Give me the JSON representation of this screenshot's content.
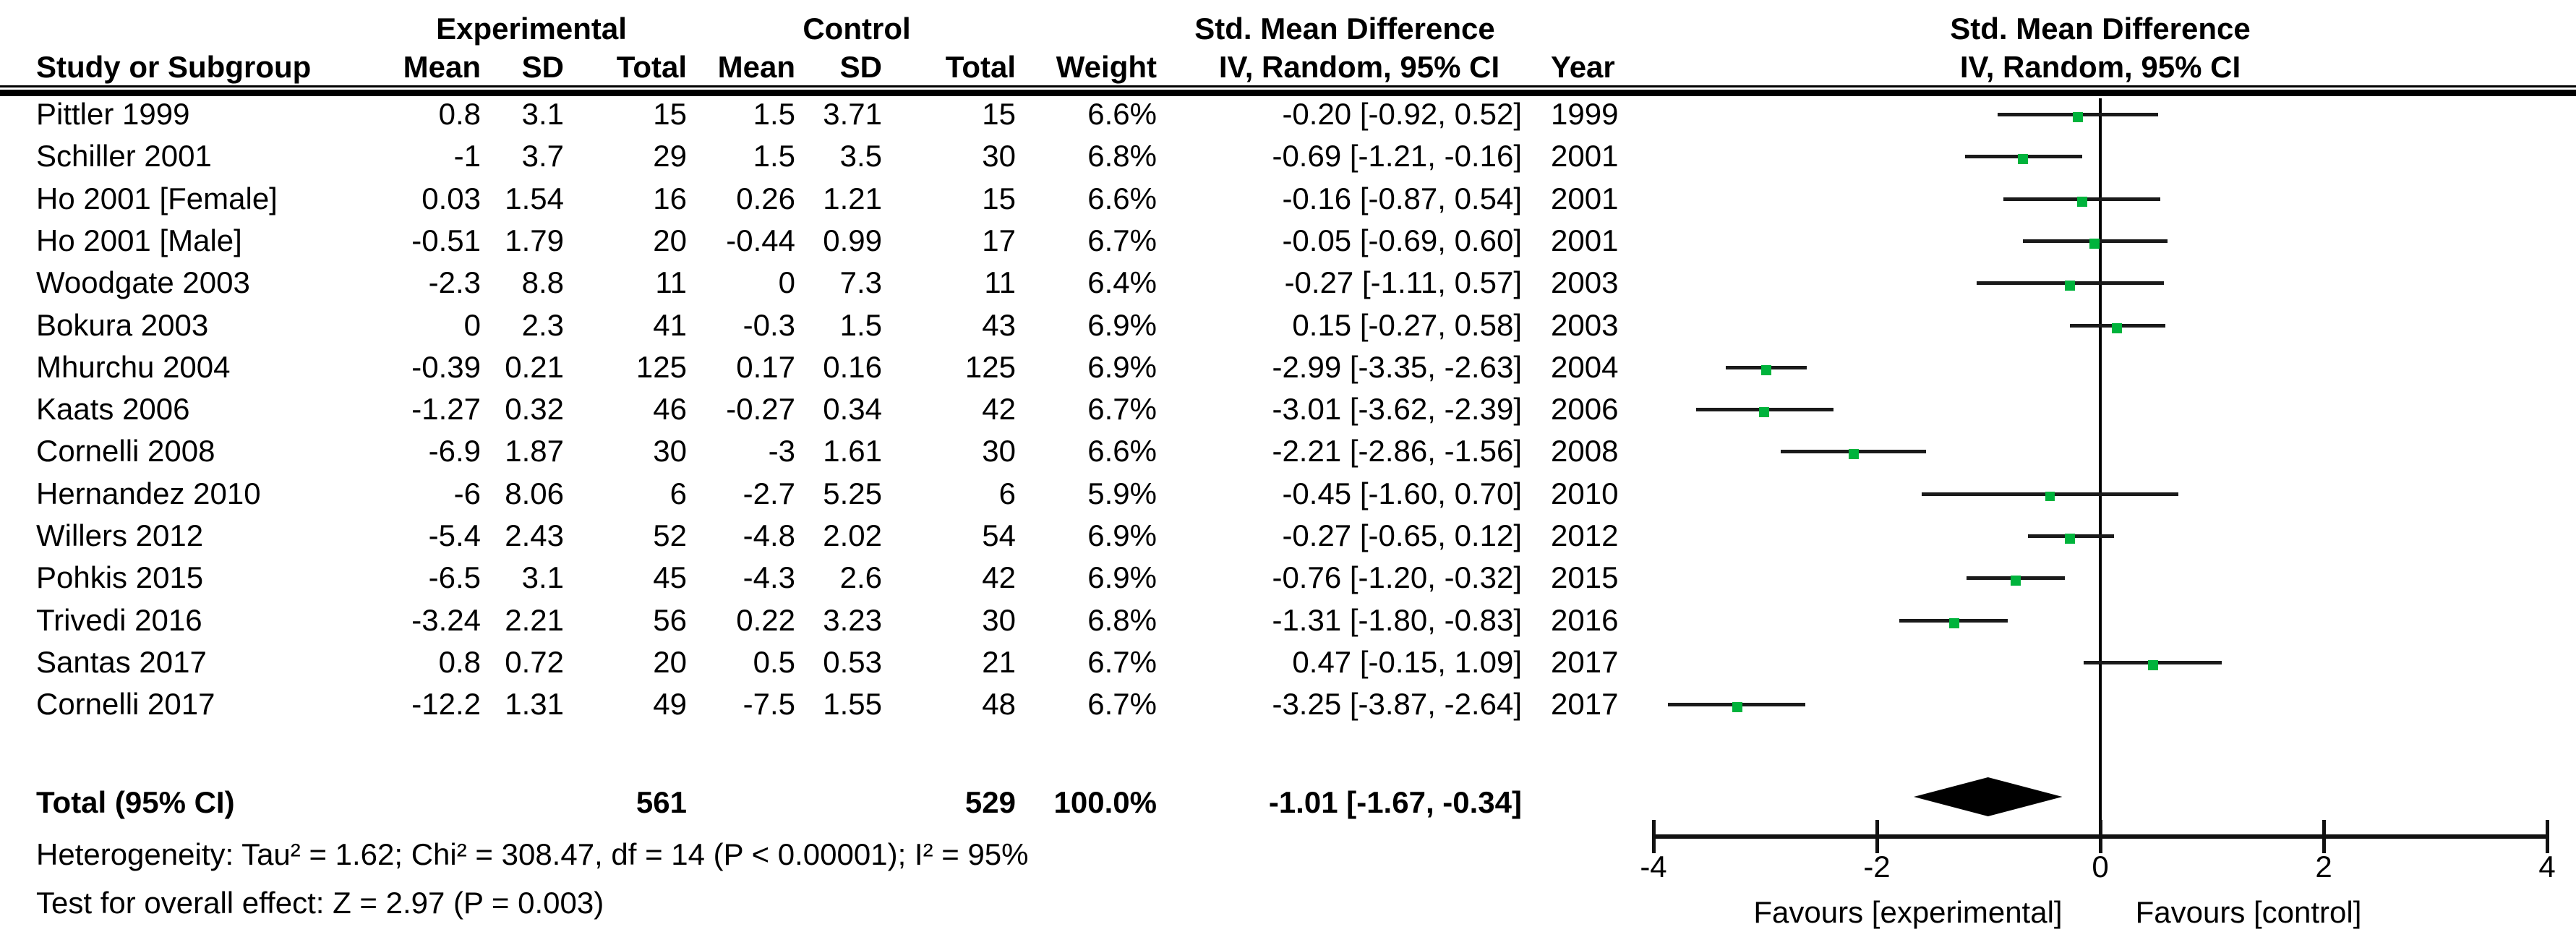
{
  "header": {
    "group_experimental": "Experimental",
    "group_control": "Control",
    "smd_title": "Std. Mean Difference",
    "study": "Study or Subgroup",
    "mean": "Mean",
    "sd": "SD",
    "total": "Total",
    "weight": "Weight",
    "iv_ci": "IV, Random, 95% CI",
    "year": "Year"
  },
  "chart_data": {
    "type": "forest",
    "effect_measure": "Std. Mean Difference",
    "method_label": "IV, Random, 95% CI",
    "axis": {
      "min": -4,
      "max": 4,
      "ticks": [
        -4,
        -2,
        0,
        2,
        4
      ]
    },
    "xlabel_left": "Favours [experimental]",
    "xlabel_right": "Favours [control]",
    "marker_color": "#00b33c",
    "line_color": "#1a1a1a",
    "studies": [
      {
        "name": "Pittler 1999",
        "exp_mean": "0.8",
        "exp_sd": "3.1",
        "exp_total": "15",
        "ctl_mean": "1.5",
        "ctl_sd": "3.71",
        "ctl_total": "15",
        "weight": "6.6%",
        "weight_pct": 6.6,
        "ci_text": "-0.20 [-0.92, 0.52]",
        "year": "1999",
        "est": -0.2,
        "lo": -0.92,
        "hi": 0.52
      },
      {
        "name": "Schiller 2001",
        "exp_mean": "-1",
        "exp_sd": "3.7",
        "exp_total": "29",
        "ctl_mean": "1.5",
        "ctl_sd": "3.5",
        "ctl_total": "30",
        "weight": "6.8%",
        "weight_pct": 6.8,
        "ci_text": "-0.69 [-1.21, -0.16]",
        "year": "2001",
        "est": -0.69,
        "lo": -1.21,
        "hi": -0.16
      },
      {
        "name": "Ho 2001 [Female]",
        "exp_mean": "0.03",
        "exp_sd": "1.54",
        "exp_total": "16",
        "ctl_mean": "0.26",
        "ctl_sd": "1.21",
        "ctl_total": "15",
        "weight": "6.6%",
        "weight_pct": 6.6,
        "ci_text": "-0.16 [-0.87, 0.54]",
        "year": "2001",
        "est": -0.16,
        "lo": -0.87,
        "hi": 0.54
      },
      {
        "name": "Ho 2001 [Male]",
        "exp_mean": "-0.51",
        "exp_sd": "1.79",
        "exp_total": "20",
        "ctl_mean": "-0.44",
        "ctl_sd": "0.99",
        "ctl_total": "17",
        "weight": "6.7%",
        "weight_pct": 6.7,
        "ci_text": "-0.05 [-0.69, 0.60]",
        "year": "2001",
        "est": -0.05,
        "lo": -0.69,
        "hi": 0.6
      },
      {
        "name": "Woodgate 2003",
        "exp_mean": "-2.3",
        "exp_sd": "8.8",
        "exp_total": "11",
        "ctl_mean": "0",
        "ctl_sd": "7.3",
        "ctl_total": "11",
        "weight": "6.4%",
        "weight_pct": 6.4,
        "ci_text": "-0.27 [-1.11, 0.57]",
        "year": "2003",
        "est": -0.27,
        "lo": -1.11,
        "hi": 0.57
      },
      {
        "name": "Bokura 2003",
        "exp_mean": "0",
        "exp_sd": "2.3",
        "exp_total": "41",
        "ctl_mean": "-0.3",
        "ctl_sd": "1.5",
        "ctl_total": "43",
        "weight": "6.9%",
        "weight_pct": 6.9,
        "ci_text": "0.15 [-0.27, 0.58]",
        "year": "2003",
        "est": 0.15,
        "lo": -0.27,
        "hi": 0.58
      },
      {
        "name": "Mhurchu 2004",
        "exp_mean": "-0.39",
        "exp_sd": "0.21",
        "exp_total": "125",
        "ctl_mean": "0.17",
        "ctl_sd": "0.16",
        "ctl_total": "125",
        "weight": "6.9%",
        "weight_pct": 6.9,
        "ci_text": "-2.99 [-3.35, -2.63]",
        "year": "2004",
        "est": -2.99,
        "lo": -3.35,
        "hi": -2.63
      },
      {
        "name": "Kaats 2006",
        "exp_mean": "-1.27",
        "exp_sd": "0.32",
        "exp_total": "46",
        "ctl_mean": "-0.27",
        "ctl_sd": "0.34",
        "ctl_total": "42",
        "weight": "6.7%",
        "weight_pct": 6.7,
        "ci_text": "-3.01 [-3.62, -2.39]",
        "year": "2006",
        "est": -3.01,
        "lo": -3.62,
        "hi": -2.39
      },
      {
        "name": "Cornelli 2008",
        "exp_mean": "-6.9",
        "exp_sd": "1.87",
        "exp_total": "30",
        "ctl_mean": "-3",
        "ctl_sd": "1.61",
        "ctl_total": "30",
        "weight": "6.6%",
        "weight_pct": 6.6,
        "ci_text": "-2.21 [-2.86, -1.56]",
        "year": "2008",
        "est": -2.21,
        "lo": -2.86,
        "hi": -1.56
      },
      {
        "name": "Hernandez 2010",
        "exp_mean": "-6",
        "exp_sd": "8.06",
        "exp_total": "6",
        "ctl_mean": "-2.7",
        "ctl_sd": "5.25",
        "ctl_total": "6",
        "weight": "5.9%",
        "weight_pct": 5.9,
        "ci_text": "-0.45 [-1.60, 0.70]",
        "year": "2010",
        "est": -0.45,
        "lo": -1.6,
        "hi": 0.7
      },
      {
        "name": "Willers 2012",
        "exp_mean": "-5.4",
        "exp_sd": "2.43",
        "exp_total": "52",
        "ctl_mean": "-4.8",
        "ctl_sd": "2.02",
        "ctl_total": "54",
        "weight": "6.9%",
        "weight_pct": 6.9,
        "ci_text": "-0.27 [-0.65, 0.12]",
        "year": "2012",
        "est": -0.27,
        "lo": -0.65,
        "hi": 0.12
      },
      {
        "name": "Pohkis 2015",
        "exp_mean": "-6.5",
        "exp_sd": "3.1",
        "exp_total": "45",
        "ctl_mean": "-4.3",
        "ctl_sd": "2.6",
        "ctl_total": "42",
        "weight": "6.9%",
        "weight_pct": 6.9,
        "ci_text": "-0.76 [-1.20, -0.32]",
        "year": "2015",
        "est": -0.76,
        "lo": -1.2,
        "hi": -0.32
      },
      {
        "name": "Trivedi 2016",
        "exp_mean": "-3.24",
        "exp_sd": "2.21",
        "exp_total": "56",
        "ctl_mean": "0.22",
        "ctl_sd": "3.23",
        "ctl_total": "30",
        "weight": "6.8%",
        "weight_pct": 6.8,
        "ci_text": "-1.31 [-1.80, -0.83]",
        "year": "2016",
        "est": -1.31,
        "lo": -1.8,
        "hi": -0.83
      },
      {
        "name": "Santas 2017",
        "exp_mean": "0.8",
        "exp_sd": "0.72",
        "exp_total": "20",
        "ctl_mean": "0.5",
        "ctl_sd": "0.53",
        "ctl_total": "21",
        "weight": "6.7%",
        "weight_pct": 6.7,
        "ci_text": "0.47 [-0.15, 1.09]",
        "year": "2017",
        "est": 0.47,
        "lo": -0.15,
        "hi": 1.09
      },
      {
        "name": "Cornelli 2017",
        "exp_mean": "-12.2",
        "exp_sd": "1.31",
        "exp_total": "49",
        "ctl_mean": "-7.5",
        "ctl_sd": "1.55",
        "ctl_total": "48",
        "weight": "6.7%",
        "weight_pct": 6.7,
        "ci_text": "-3.25 [-3.87, -2.64]",
        "year": "2017",
        "est": -3.25,
        "lo": -3.87,
        "hi": -2.64
      }
    ],
    "total": {
      "label": "Total (95% CI)",
      "exp_total": "561",
      "ctl_total": "529",
      "weight": "100.0%",
      "ci_text": "-1.01 [-1.67, -0.34]",
      "est": -1.01,
      "lo": -1.67,
      "hi": -0.34
    },
    "heterogeneity": "Heterogeneity: Tau² = 1.62; Chi² = 308.47, df = 14 (P < 0.00001); I² = 95%",
    "overall_effect": "Test for overall effect: Z = 2.97 (P = 0.003)"
  }
}
